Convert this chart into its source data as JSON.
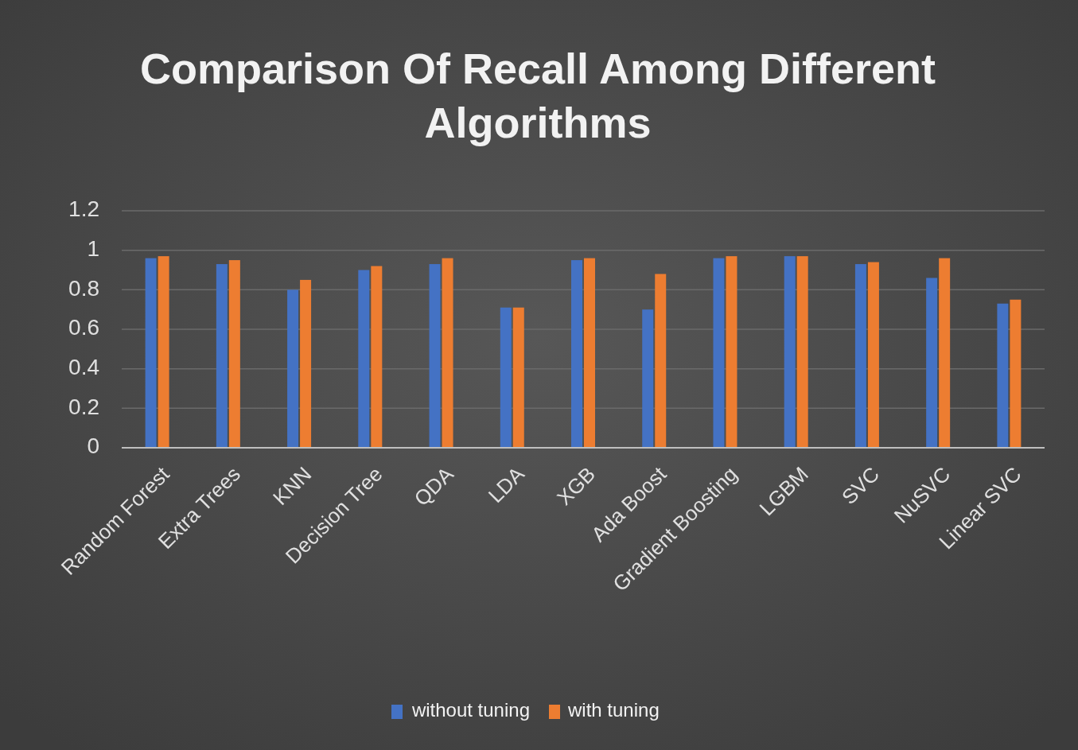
{
  "chart_data": {
    "type": "bar",
    "title": "Comparison Of Recall Among Different Algorithms",
    "categories": [
      "Random Forest",
      "Extra Trees",
      "KNN",
      "Decision Tree",
      "QDA",
      "LDA",
      "XGB",
      "Ada Boost",
      "Gradient Boosting",
      "LGBM",
      "SVC",
      "NuSVC",
      "Linear SVC"
    ],
    "series": [
      {
        "name": "without tuning",
        "color": "#4472c4",
        "values": [
          0.96,
          0.93,
          0.8,
          0.9,
          0.93,
          0.71,
          0.95,
          0.7,
          0.96,
          0.97,
          0.93,
          0.86,
          0.73
        ]
      },
      {
        "name": "with tuning",
        "color": "#ed7d31",
        "values": [
          0.97,
          0.95,
          0.85,
          0.92,
          0.96,
          0.71,
          0.96,
          0.88,
          0.97,
          0.97,
          0.94,
          0.96,
          0.75
        ]
      }
    ],
    "ylim": [
      0,
      1.2
    ],
    "yticks": [
      0,
      0.2,
      0.4,
      0.6,
      0.8,
      1,
      1.2
    ],
    "grid": "y",
    "legend": "bottom"
  }
}
